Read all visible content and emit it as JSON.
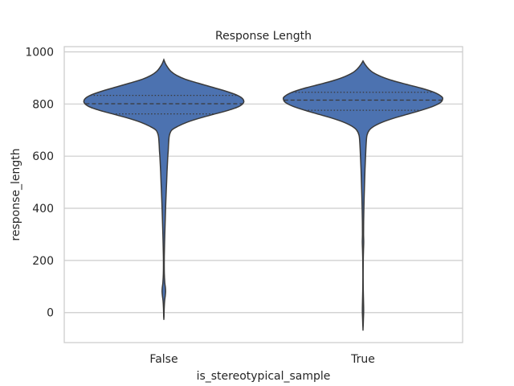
{
  "chart_data": {
    "type": "violin",
    "title": "Response Length",
    "xlabel": "is_stereotypical_sample",
    "ylabel": "response_length",
    "categories": [
      "False",
      "True"
    ],
    "ylim": [
      -115,
      1020
    ],
    "yticks": [
      0,
      200,
      400,
      600,
      800,
      1000
    ],
    "grid": "horizontal",
    "fill_color": "#4c72b0",
    "edge_color": "#3a3a3a",
    "violins": [
      {
        "category": "False",
        "min": -25,
        "max": 970,
        "quartiles": {
          "q1": 762,
          "median": 801,
          "q3": 833
        },
        "profile": [
          [
            970,
            0.0
          ],
          [
            955,
            0.02
          ],
          [
            940,
            0.05
          ],
          [
            925,
            0.09
          ],
          [
            910,
            0.16
          ],
          [
            895,
            0.27
          ],
          [
            880,
            0.43
          ],
          [
            865,
            0.6
          ],
          [
            850,
            0.77
          ],
          [
            835,
            0.91
          ],
          [
            820,
            0.99
          ],
          [
            805,
            1.0
          ],
          [
            790,
            0.94
          ],
          [
            775,
            0.8
          ],
          [
            760,
            0.62
          ],
          [
            745,
            0.44
          ],
          [
            730,
            0.29
          ],
          [
            715,
            0.18
          ],
          [
            700,
            0.1
          ],
          [
            680,
            0.07
          ],
          [
            650,
            0.06
          ],
          [
            620,
            0.055
          ],
          [
            600,
            0.05
          ],
          [
            570,
            0.045
          ],
          [
            540,
            0.04
          ],
          [
            500,
            0.035
          ],
          [
            450,
            0.028
          ],
          [
            400,
            0.022
          ],
          [
            350,
            0.017
          ],
          [
            300,
            0.012
          ],
          [
            250,
            0.008
          ],
          [
            200,
            0.005
          ],
          [
            150,
            0.006
          ],
          [
            115,
            0.012
          ],
          [
            95,
            0.02
          ],
          [
            80,
            0.022
          ],
          [
            65,
            0.018
          ],
          [
            45,
            0.01
          ],
          [
            20,
            0.005
          ],
          [
            0,
            0.003
          ],
          [
            -15,
            0.002
          ],
          [
            -25,
            0.0
          ]
        ]
      },
      {
        "category": "True",
        "min": -65,
        "max": 965,
        "quartiles": {
          "q1": 776,
          "median": 815,
          "q3": 845
        },
        "profile": [
          [
            965,
            0.0
          ],
          [
            950,
            0.03
          ],
          [
            935,
            0.07
          ],
          [
            920,
            0.13
          ],
          [
            905,
            0.23
          ],
          [
            890,
            0.37
          ],
          [
            875,
            0.55
          ],
          [
            860,
            0.74
          ],
          [
            845,
            0.89
          ],
          [
            830,
            0.98
          ],
          [
            820,
            1.0
          ],
          [
            805,
            0.97
          ],
          [
            790,
            0.87
          ],
          [
            775,
            0.72
          ],
          [
            760,
            0.55
          ],
          [
            745,
            0.38
          ],
          [
            730,
            0.24
          ],
          [
            715,
            0.14
          ],
          [
            700,
            0.08
          ],
          [
            680,
            0.05
          ],
          [
            650,
            0.04
          ],
          [
            600,
            0.032
          ],
          [
            550,
            0.025
          ],
          [
            500,
            0.02
          ],
          [
            450,
            0.015
          ],
          [
            400,
            0.011
          ],
          [
            350,
            0.008
          ],
          [
            300,
            0.007
          ],
          [
            270,
            0.009
          ],
          [
            240,
            0.006
          ],
          [
            200,
            0.003
          ],
          [
            150,
            0.002
          ],
          [
            100,
            0.0025
          ],
          [
            60,
            0.005
          ],
          [
            20,
            0.008
          ],
          [
            0,
            0.008
          ],
          [
            -25,
            0.005
          ],
          [
            -45,
            0.003
          ],
          [
            -65,
            0.0
          ]
        ]
      }
    ]
  }
}
